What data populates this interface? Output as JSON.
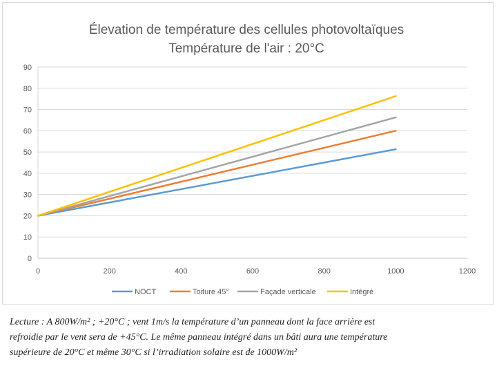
{
  "chart_data": {
    "type": "line",
    "title": [
      "Élevation de température des cellules photovoltaïques",
      "Température de l'air : 20°C"
    ],
    "xlabel": "",
    "ylabel": "",
    "xlim": [
      0,
      1200
    ],
    "ylim": [
      0,
      90
    ],
    "xticks": [
      0,
      200,
      400,
      600,
      800,
      1000,
      1200
    ],
    "yticks": [
      0,
      10,
      20,
      30,
      40,
      50,
      60,
      70,
      80,
      90
    ],
    "grid": "horizontal",
    "legend_position": "bottom",
    "series": [
      {
        "name": "NOCT",
        "color": "#5b9bd5",
        "x": [
          0,
          1000
        ],
        "y": [
          20,
          51.3
        ]
      },
      {
        "name": "Toiture 45°",
        "color": "#ed7d31",
        "x": [
          0,
          1000
        ],
        "y": [
          20,
          60
        ]
      },
      {
        "name": "Façade verticale",
        "color": "#a5a5a5",
        "x": [
          0,
          1000
        ],
        "y": [
          20,
          66.3
        ]
      },
      {
        "name": "Intégré",
        "color": "#ffc000",
        "x": [
          0,
          1000
        ],
        "y": [
          20,
          76.3
        ]
      }
    ]
  },
  "caption": {
    "lines": [
      "Lecture : A 800W/m² ; +20°C ; vent 1m/s la température d’un panneau dont la face arrière est",
      "refroidie par le vent sera de +45°C.  Le même panneau intégré dans un bâti aura une température",
      "supérieure de 20°C et même 30°C si l’irradiation solaire est de 1000W/m²"
    ]
  }
}
